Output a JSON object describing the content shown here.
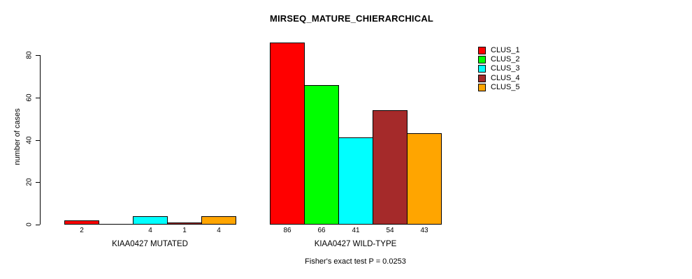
{
  "chart_data": {
    "type": "bar",
    "title": "MIRSEQ_MATURE_CHIERARCHICAL",
    "xlabel": "",
    "ylabel": "number of cases",
    "ylim": [
      0,
      80
    ],
    "yticks": [
      0,
      20,
      40,
      60,
      80
    ],
    "grid": false,
    "legend_position": "top-right",
    "categories": [
      "KIAA0427 MUTATED",
      "KIAA0427 WILD-TYPE"
    ],
    "series": [
      {
        "name": "CLUS_1",
        "color": "#FF0000",
        "values": [
          2,
          86
        ]
      },
      {
        "name": "CLUS_2",
        "color": "#00FF00",
        "values": [
          0,
          66
        ]
      },
      {
        "name": "CLUS_3",
        "color": "#00FFFF",
        "values": [
          4,
          41
        ]
      },
      {
        "name": "CLUS_4",
        "color": "#A52A2A",
        "values": [
          1,
          54
        ]
      },
      {
        "name": "CLUS_5",
        "color": "#FFA500",
        "values": [
          4,
          43
        ]
      }
    ],
    "bar_value_labels": [
      [
        "2",
        "",
        "4",
        "1",
        "4"
      ],
      [
        "86",
        "66",
        "41",
        "54",
        "43"
      ]
    ],
    "annotation": "Fisher's exact test P = 0.0253",
    "colors": {
      "background": "#FFFFFF",
      "axis": "#000000",
      "bar_border": "#000000"
    }
  }
}
